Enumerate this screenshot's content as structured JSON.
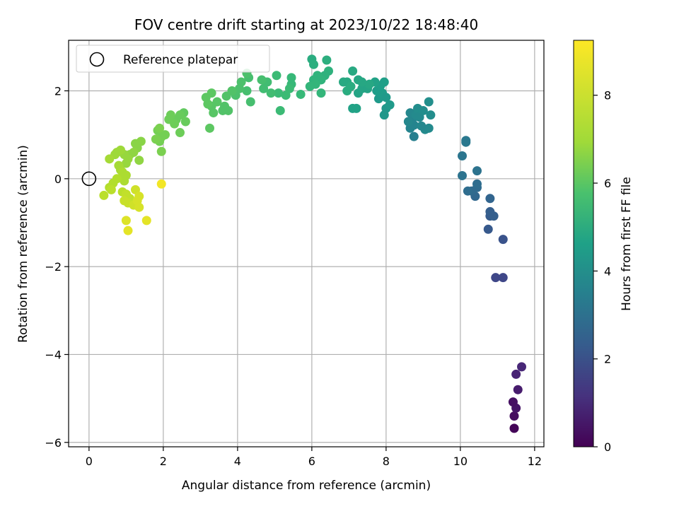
{
  "chart_data": {
    "type": "scatter",
    "title": "FOV centre drift starting at 2023/10/22 18:48:40",
    "xlabel": "Angular distance from reference (arcmin)",
    "ylabel": "Rotation from reference (arcmin)",
    "xlim": [
      -0.55,
      12.25
    ],
    "ylim": [
      -6.1,
      3.15
    ],
    "x_ticks": [
      0,
      2,
      4,
      6,
      8,
      10,
      12
    ],
    "y_ticks": [
      -6,
      -4,
      -2,
      0,
      2
    ],
    "x_tick_labels": [
      "0",
      "2",
      "4",
      "6",
      "8",
      "10",
      "12"
    ],
    "y_tick_labels": [
      "−6",
      "−4",
      "−2",
      "0",
      "2"
    ],
    "grid": true,
    "legend": {
      "placement": "top-left",
      "entries": [
        "Reference platepar"
      ]
    },
    "reference_point": {
      "x": 0,
      "y": 0,
      "marker": "open-circle"
    },
    "colorbar": {
      "label": "Hours from first FF file",
      "colormap": "viridis",
      "range": [
        0,
        9.25
      ],
      "ticks": [
        0,
        2,
        4,
        6,
        8
      ],
      "tick_labels": [
        "0",
        "2",
        "4",
        "6",
        "8"
      ]
    },
    "points": [
      [
        11.45,
        -5.68,
        0.1
      ],
      [
        11.45,
        -5.4,
        0.3
      ],
      [
        11.5,
        -5.22,
        0.5
      ],
      [
        11.42,
        -5.08,
        0.4
      ],
      [
        11.55,
        -4.8,
        0.7
      ],
      [
        11.5,
        -4.45,
        0.9
      ],
      [
        11.65,
        -4.28,
        1.0
      ],
      [
        10.95,
        -2.25,
        2.0
      ],
      [
        11.15,
        -2.25,
        2.0
      ],
      [
        11.15,
        -1.38,
        2.4
      ],
      [
        10.75,
        -1.15,
        2.6
      ],
      [
        10.8,
        -0.85,
        2.7
      ],
      [
        10.9,
        -0.85,
        2.8
      ],
      [
        10.8,
        -0.75,
        2.8
      ],
      [
        10.8,
        -0.45,
        3.0
      ],
      [
        10.4,
        -0.4,
        3.1
      ],
      [
        10.45,
        -0.2,
        3.2
      ],
      [
        10.3,
        -0.28,
        3.2
      ],
      [
        10.2,
        -0.28,
        3.3
      ],
      [
        10.45,
        -0.12,
        3.3
      ],
      [
        10.05,
        0.07,
        3.5
      ],
      [
        10.45,
        0.18,
        3.5
      ],
      [
        10.05,
        0.52,
        3.6
      ],
      [
        10.15,
        0.83,
        3.7
      ],
      [
        10.15,
        0.87,
        3.7
      ],
      [
        8.75,
        0.96,
        4.0
      ],
      [
        8.65,
        1.15,
        4.2
      ],
      [
        8.75,
        1.22,
        4.2
      ],
      [
        8.7,
        1.35,
        4.2
      ],
      [
        8.6,
        1.3,
        4.3
      ],
      [
        8.65,
        1.5,
        4.3
      ],
      [
        8.8,
        1.45,
        4.4
      ],
      [
        8.9,
        1.4,
        4.4
      ],
      [
        8.85,
        1.6,
        4.5
      ],
      [
        9.05,
        1.12,
        4.4
      ],
      [
        9.15,
        1.15,
        4.4
      ],
      [
        9.2,
        1.45,
        4.5
      ],
      [
        9.15,
        1.75,
        4.6
      ],
      [
        9.0,
        1.55,
        4.5
      ],
      [
        8.95,
        1.2,
        4.3
      ],
      [
        7.95,
        1.45,
        4.9
      ],
      [
        8.0,
        1.6,
        4.9
      ],
      [
        8.1,
        1.68,
        5.0
      ],
      [
        7.8,
        1.82,
        5.0
      ],
      [
        7.9,
        1.95,
        5.1
      ],
      [
        8.0,
        1.85,
        5.0
      ],
      [
        7.75,
        2.0,
        5.1
      ],
      [
        7.95,
        2.2,
        5.2
      ],
      [
        7.85,
        2.12,
        5.2
      ],
      [
        7.7,
        2.2,
        5.3
      ],
      [
        7.1,
        1.6,
        5.3
      ],
      [
        7.2,
        1.6,
        5.3
      ],
      [
        7.25,
        1.95,
        5.4
      ],
      [
        7.35,
        2.05,
        5.4
      ],
      [
        7.5,
        2.05,
        5.4
      ],
      [
        7.55,
        2.15,
        5.5
      ],
      [
        7.35,
        2.2,
        5.5
      ],
      [
        7.25,
        2.25,
        5.5
      ],
      [
        7.1,
        2.45,
        5.6
      ],
      [
        6.95,
        2.2,
        5.6
      ],
      [
        6.85,
        2.2,
        5.6
      ],
      [
        6.95,
        2.0,
        5.7
      ],
      [
        7.05,
        2.1,
        5.7
      ],
      [
        6.0,
        2.72,
        5.7
      ],
      [
        6.05,
        2.6,
        5.8
      ],
      [
        6.4,
        2.7,
        5.8
      ],
      [
        6.45,
        2.45,
        5.9
      ],
      [
        6.35,
        2.35,
        5.9
      ],
      [
        6.25,
        2.25,
        6.0
      ],
      [
        6.15,
        2.35,
        6.0
      ],
      [
        6.05,
        2.25,
        6.0
      ],
      [
        6.1,
        2.15,
        6.1
      ],
      [
        5.95,
        2.1,
        6.1
      ],
      [
        6.25,
        1.95,
        6.1
      ],
      [
        5.7,
        1.92,
        6.2
      ],
      [
        5.45,
        2.3,
        6.2
      ],
      [
        5.45,
        2.15,
        6.2
      ],
      [
        5.4,
        2.05,
        6.3
      ],
      [
        5.3,
        1.9,
        6.3
      ],
      [
        5.15,
        1.55,
        6.3
      ],
      [
        5.1,
        1.95,
        6.3
      ],
      [
        5.05,
        2.35,
        6.3
      ],
      [
        4.9,
        1.95,
        6.4
      ],
      [
        4.8,
        2.2,
        6.4
      ],
      [
        4.7,
        2.05,
        6.4
      ],
      [
        4.65,
        2.25,
        6.5
      ],
      [
        4.35,
        1.75,
        6.5
      ],
      [
        4.25,
        2.0,
        6.5
      ],
      [
        4.3,
        2.3,
        6.5
      ],
      [
        4.25,
        2.4,
        6.6
      ],
      [
        4.1,
        2.2,
        6.6
      ],
      [
        4.05,
        2.05,
        6.6
      ],
      [
        3.95,
        1.9,
        6.6
      ],
      [
        3.85,
        2.0,
        6.7
      ],
      [
        3.7,
        1.88,
        6.7
      ],
      [
        3.65,
        1.65,
        6.7
      ],
      [
        3.75,
        1.55,
        6.7
      ],
      [
        3.6,
        1.55,
        6.7
      ],
      [
        3.45,
        1.75,
        6.8
      ],
      [
        3.3,
        1.65,
        6.8
      ],
      [
        3.35,
        1.5,
        6.8
      ],
      [
        3.2,
        1.7,
        6.9
      ],
      [
        3.15,
        1.85,
        6.9
      ],
      [
        3.3,
        1.95,
        6.9
      ],
      [
        3.25,
        1.15,
        6.9
      ],
      [
        2.55,
        1.5,
        7.0
      ],
      [
        2.6,
        1.3,
        7.1
      ],
      [
        2.45,
        1.45,
        7.1
      ],
      [
        2.35,
        1.35,
        7.1
      ],
      [
        2.45,
        1.05,
        7.2
      ],
      [
        2.3,
        1.25,
        7.2
      ],
      [
        2.15,
        1.35,
        7.2
      ],
      [
        2.2,
        1.45,
        7.2
      ],
      [
        2.05,
        1.0,
        7.3
      ],
      [
        1.95,
        0.95,
        7.3
      ],
      [
        1.9,
        0.85,
        7.3
      ],
      [
        1.85,
        1.1,
        7.3
      ],
      [
        1.9,
        1.15,
        7.4
      ],
      [
        1.8,
        0.9,
        7.4
      ],
      [
        1.95,
        0.62,
        7.4
      ],
      [
        1.4,
        0.85,
        7.6
      ],
      [
        1.3,
        0.7,
        7.6
      ],
      [
        1.25,
        0.8,
        7.6
      ],
      [
        1.35,
        0.42,
        7.7
      ],
      [
        1.2,
        0.6,
        7.7
      ],
      [
        1.1,
        0.55,
        7.7
      ],
      [
        1.05,
        0.45,
        7.8
      ],
      [
        1.0,
        0.35,
        7.8
      ],
      [
        0.95,
        0.55,
        7.8
      ],
      [
        0.85,
        0.65,
        7.9
      ],
      [
        0.75,
        0.6,
        7.9
      ],
      [
        0.7,
        0.55,
        7.9
      ],
      [
        0.55,
        0.45,
        8.0
      ],
      [
        0.8,
        0.3,
        8.0
      ],
      [
        0.85,
        0.2,
        8.0
      ],
      [
        0.9,
        0.15,
        8.1
      ],
      [
        1.0,
        0.08,
        8.1
      ],
      [
        0.95,
        -0.05,
        8.1
      ],
      [
        0.9,
        0.05,
        8.1
      ],
      [
        0.75,
        0.0,
        8.2
      ],
      [
        0.65,
        -0.1,
        8.2
      ],
      [
        0.55,
        -0.2,
        8.2
      ],
      [
        0.6,
        -0.25,
        8.3
      ],
      [
        0.4,
        -0.38,
        8.3
      ],
      [
        0.9,
        -0.3,
        8.3
      ],
      [
        1.0,
        -0.35,
        8.4
      ],
      [
        1.1,
        -0.45,
        8.4
      ],
      [
        1.05,
        -0.55,
        8.5
      ],
      [
        0.95,
        -0.5,
        8.5
      ],
      [
        1.2,
        -0.6,
        8.6
      ],
      [
        1.25,
        -0.25,
        8.6
      ],
      [
        1.35,
        -0.4,
        8.7
      ],
      [
        1.3,
        -0.5,
        8.7
      ],
      [
        1.35,
        -0.65,
        8.7
      ],
      [
        1.0,
        -0.95,
        8.8
      ],
      [
        1.05,
        -1.18,
        8.9
      ],
      [
        1.55,
        -0.95,
        8.9
      ],
      [
        1.95,
        -0.12,
        9.1
      ]
    ]
  }
}
